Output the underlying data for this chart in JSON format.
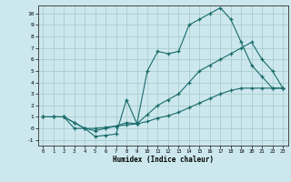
{
  "title": "",
  "xlabel": "Humidex (Indice chaleur)",
  "bg_color": "#cce8ee",
  "grid_color": "#aacccc",
  "line_color": "#1a6b6b",
  "xlim": [
    -0.5,
    23.5
  ],
  "ylim": [
    -1.5,
    10.7
  ],
  "xticks": [
    0,
    1,
    2,
    3,
    4,
    5,
    6,
    7,
    8,
    9,
    10,
    11,
    12,
    13,
    14,
    15,
    16,
    17,
    18,
    19,
    20,
    21,
    22,
    23
  ],
  "yticks": [
    -1,
    0,
    1,
    2,
    3,
    4,
    5,
    6,
    7,
    8,
    9,
    10
  ],
  "line1_x": [
    0,
    1,
    2,
    3,
    4,
    5,
    6,
    7,
    8,
    9,
    10,
    11,
    12,
    13,
    14,
    15,
    16,
    17,
    18,
    19,
    20,
    21,
    22,
    23
  ],
  "line1_y": [
    1,
    1,
    1,
    0,
    0,
    -0.7,
    -0.6,
    -0.5,
    2.5,
    0.4,
    5.0,
    6.7,
    6.5,
    6.7,
    9.0,
    9.5,
    10.0,
    10.5,
    9.5,
    7.5,
    5.5,
    4.5,
    3.5,
    3.5
  ],
  "line2_x": [
    0,
    1,
    2,
    3,
    4,
    5,
    6,
    7,
    8,
    9,
    10,
    11,
    12,
    13,
    14,
    15,
    16,
    17,
    18,
    19,
    20,
    21,
    22,
    23
  ],
  "line2_y": [
    1,
    1,
    1,
    0.5,
    0,
    -0.2,
    0.0,
    0.2,
    0.5,
    0.4,
    1.2,
    2.0,
    2.5,
    3.0,
    4.0,
    5.0,
    5.5,
    6.0,
    6.5,
    7.0,
    7.5,
    6.0,
    5.0,
    3.5
  ],
  "line3_x": [
    0,
    1,
    2,
    3,
    4,
    5,
    6,
    7,
    8,
    9,
    10,
    11,
    12,
    13,
    14,
    15,
    16,
    17,
    18,
    19,
    20,
    21,
    22,
    23
  ],
  "line3_y": [
    1,
    1,
    1,
    0.5,
    0,
    0.0,
    0.1,
    0.2,
    0.3,
    0.4,
    0.6,
    0.9,
    1.1,
    1.4,
    1.8,
    2.2,
    2.6,
    3.0,
    3.3,
    3.5,
    3.5,
    3.5,
    3.5,
    3.5
  ]
}
